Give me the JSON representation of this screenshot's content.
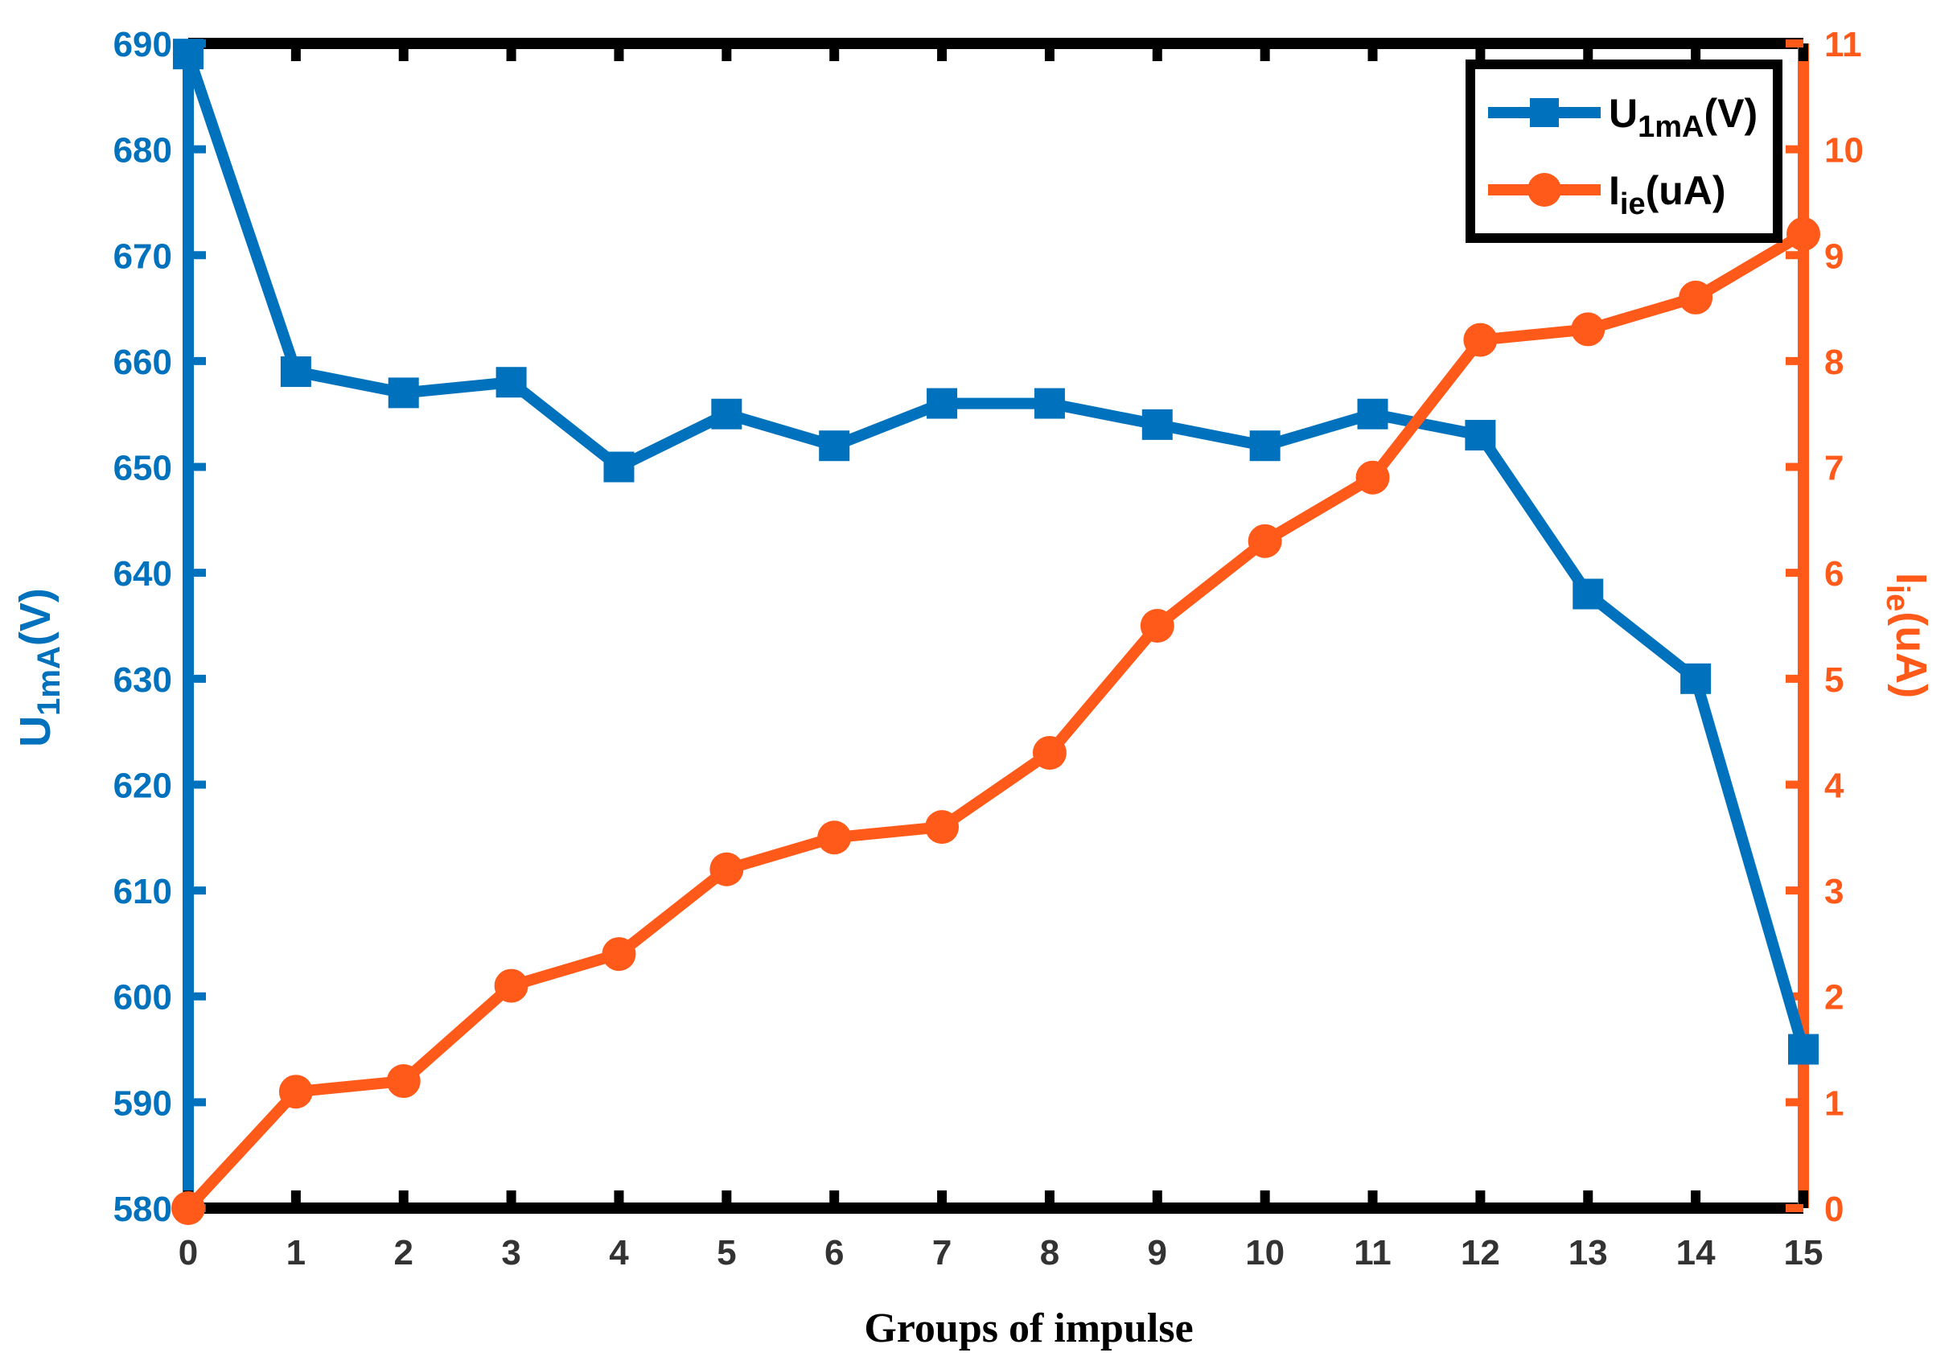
{
  "chart_data": {
    "type": "line",
    "xlabel": "Groups of impulse",
    "xlim": [
      0,
      15
    ],
    "x": [
      0,
      1,
      2,
      3,
      4,
      5,
      6,
      7,
      8,
      9,
      10,
      11,
      12,
      13,
      14,
      15
    ],
    "x_ticks": [
      "0",
      "1",
      "2",
      "3",
      "4",
      "5",
      "6",
      "7",
      "8",
      "9",
      "10",
      "11",
      "12",
      "13",
      "14",
      "15"
    ],
    "left_axis": {
      "label_main": "U",
      "label_sub": "1mA",
      "label_unit": "(V)",
      "ylim": [
        580,
        690
      ],
      "ticks": [
        "580",
        "590",
        "600",
        "610",
        "620",
        "630",
        "640",
        "650",
        "660",
        "670",
        "680",
        "690"
      ],
      "color": "#0072BD"
    },
    "right_axis": {
      "label_main": "I",
      "label_sub": "ie",
      "label_unit": "(uA)",
      "ylim": [
        0,
        11
      ],
      "ticks": [
        "0",
        "1",
        "2",
        "3",
        "4",
        "5",
        "6",
        "7",
        "8",
        "9",
        "10",
        "11"
      ],
      "color": "#FF5A1A"
    },
    "series": [
      {
        "name_main": "U",
        "name_sub": "1mA",
        "name_unit": "(V)",
        "axis": "left",
        "marker": "square",
        "color": "#0072BD",
        "values": [
          689,
          659,
          657,
          658,
          650,
          655,
          652,
          656,
          656,
          654,
          652,
          655,
          653,
          638,
          630,
          595
        ]
      },
      {
        "name_main": "I",
        "name_sub": "ie",
        "name_unit": "(uA)",
        "axis": "right",
        "marker": "circle",
        "color": "#FF5A1A",
        "values": [
          0,
          1.1,
          1.2,
          2.1,
          2.4,
          3.2,
          3.5,
          3.6,
          4.3,
          5.5,
          6.3,
          6.9,
          8.2,
          8.3,
          8.6,
          9.2
        ]
      }
    ],
    "grid": false,
    "legend_position": "top-right"
  }
}
